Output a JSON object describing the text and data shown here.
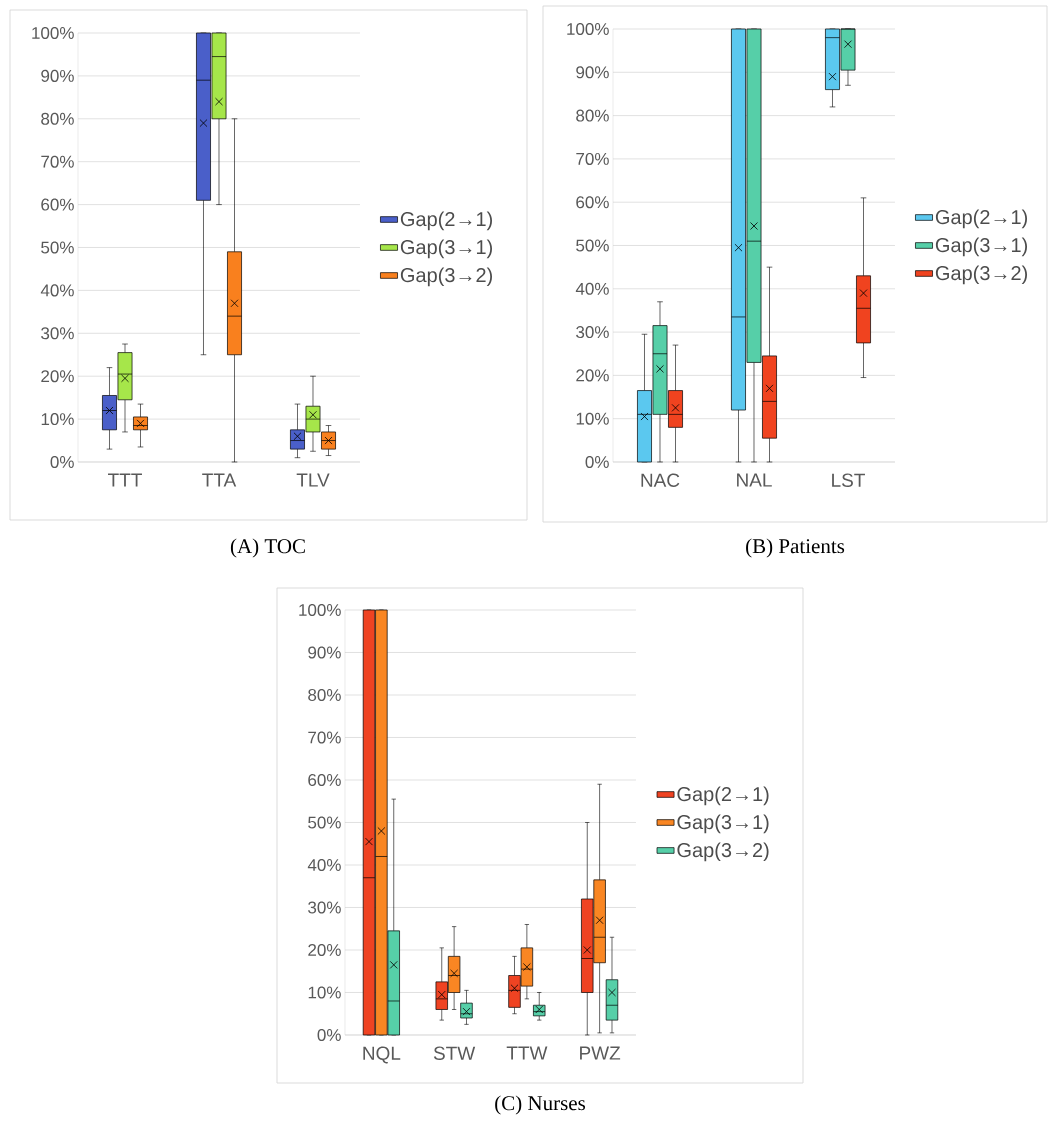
{
  "chart_data": [
    {
      "type": "box",
      "title": "(A) TOC",
      "categories": [
        "TTT",
        "TTA",
        "TLV"
      ],
      "ylim": [
        0,
        100
      ],
      "yticks": [
        {
          "value": 0,
          "label": "0%"
        },
        {
          "value": 10,
          "label": "10%"
        },
        {
          "value": 20,
          "label": "20%"
        },
        {
          "value": 30,
          "label": "30%"
        },
        {
          "value": 40,
          "label": "40%"
        },
        {
          "value": 50,
          "label": "50%"
        },
        {
          "value": 60,
          "label": "60%"
        },
        {
          "value": 70,
          "label": "70%"
        },
        {
          "value": 80,
          "label": "80%"
        },
        {
          "value": 90,
          "label": "90%"
        },
        {
          "value": 100,
          "label": "100%"
        }
      ],
      "grid": "y",
      "legend": "right",
      "series": [
        {
          "name": "Gap(2→1)",
          "color": "#4a5fc9",
          "boxes": [
            {
              "low": 3,
              "q1": 7.5,
              "median": 12,
              "q3": 15.5,
              "high": 22,
              "mean": 12
            },
            {
              "low": 25,
              "q1": 61,
              "median": 89,
              "q3": 100,
              "high": 100,
              "mean": 79
            },
            {
              "low": 1,
              "q1": 3,
              "median": 5,
              "q3": 7.5,
              "high": 13.5,
              "mean": 6
            }
          ]
        },
        {
          "name": "Gap(3→1)",
          "color": "#a6e64a",
          "boxes": [
            {
              "low": 7,
              "q1": 14.5,
              "median": 20.5,
              "q3": 25.5,
              "high": 27.5,
              "mean": 19.5
            },
            {
              "low": 60,
              "q1": 80,
              "median": 94.5,
              "q3": 100,
              "high": 100,
              "mean": 84
            },
            {
              "low": 2.5,
              "q1": 7,
              "median": 10,
              "q3": 13,
              "high": 20,
              "mean": 11
            }
          ]
        },
        {
          "name": "Gap(3→2)",
          "color": "#f9801e",
          "boxes": [
            {
              "low": 3.5,
              "q1": 7.5,
              "median": 8.5,
              "q3": 10.5,
              "high": 13.5,
              "mean": 9
            },
            {
              "low": 0,
              "q1": 25,
              "median": 34,
              "q3": 49,
              "high": 80,
              "mean": 37
            },
            {
              "low": 1.5,
              "q1": 3,
              "median": 5,
              "q3": 7,
              "high": 8.5,
              "mean": 5
            }
          ]
        }
      ]
    },
    {
      "type": "box",
      "title": "(B) Patients",
      "categories": [
        "NAC",
        "NAL",
        "LST"
      ],
      "ylim": [
        0,
        100
      ],
      "yticks": [
        {
          "value": 0,
          "label": "0%"
        },
        {
          "value": 10,
          "label": "10%"
        },
        {
          "value": 20,
          "label": "20%"
        },
        {
          "value": 30,
          "label": "30%"
        },
        {
          "value": 40,
          "label": "40%"
        },
        {
          "value": 50,
          "label": "50%"
        },
        {
          "value": 60,
          "label": "60%"
        },
        {
          "value": 70,
          "label": "70%"
        },
        {
          "value": 80,
          "label": "80%"
        },
        {
          "value": 90,
          "label": "90%"
        },
        {
          "value": 100,
          "label": "100%"
        }
      ],
      "grid": "y",
      "legend": "right",
      "series": [
        {
          "name": "Gap(2→1)",
          "color": "#5bc8ef",
          "boxes": [
            {
              "low": 0,
              "q1": 0,
              "median": 11,
              "q3": 16.5,
              "high": 29.5,
              "mean": 10.5
            },
            {
              "low": 0,
              "q1": 12,
              "median": 33.5,
              "q3": 100,
              "high": 100,
              "mean": 49.5
            },
            {
              "low": 82,
              "q1": 86,
              "median": 98,
              "q3": 100,
              "high": 100,
              "mean": 89
            }
          ]
        },
        {
          "name": "Gap(3→1)",
          "color": "#56cfa8",
          "boxes": [
            {
              "low": 0,
              "q1": 11,
              "median": 25,
              "q3": 31.5,
              "high": 37,
              "mean": 21.5
            },
            {
              "low": 0,
              "q1": 23,
              "median": 51,
              "q3": 100,
              "high": 100,
              "mean": 54.5
            },
            {
              "low": 87,
              "q1": 90.5,
              "median": 100,
              "q3": 100,
              "high": 100,
              "mean": 96.5
            }
          ]
        },
        {
          "name": "Gap(3→2)",
          "color": "#f0431f",
          "boxes": [
            {
              "low": 0,
              "q1": 8,
              "median": 11,
              "q3": 16.5,
              "high": 27,
              "mean": 12.5
            },
            {
              "low": 0,
              "q1": 5.5,
              "median": 14,
              "q3": 24.5,
              "high": 45,
              "mean": 17
            },
            {
              "low": 19.5,
              "q1": 27.5,
              "median": 35.5,
              "q3": 43,
              "high": 61,
              "mean": 39
            }
          ]
        }
      ]
    },
    {
      "type": "box",
      "title": "(C) Nurses",
      "categories": [
        "NQL",
        "STW",
        "TTW",
        "PWZ"
      ],
      "ylim": [
        0,
        100
      ],
      "yticks": [
        {
          "value": 0,
          "label": "0%"
        },
        {
          "value": 10,
          "label": "10%"
        },
        {
          "value": 20,
          "label": "20%"
        },
        {
          "value": 30,
          "label": "30%"
        },
        {
          "value": 40,
          "label": "40%"
        },
        {
          "value": 50,
          "label": "50%"
        },
        {
          "value": 60,
          "label": "60%"
        },
        {
          "value": 70,
          "label": "70%"
        },
        {
          "value": 80,
          "label": "80%"
        },
        {
          "value": 90,
          "label": "90%"
        },
        {
          "value": 100,
          "label": "100%"
        }
      ],
      "grid": "y",
      "legend": "right",
      "series": [
        {
          "name": "Gap(2→1)",
          "color": "#ef4322",
          "boxes": [
            {
              "low": 0,
              "q1": 0,
              "median": 37,
              "q3": 100,
              "high": 100,
              "mean": 45.5
            },
            {
              "low": 3.5,
              "q1": 6,
              "median": 8.5,
              "q3": 12.5,
              "high": 20.5,
              "mean": 9.5
            },
            {
              "low": 5,
              "q1": 6.5,
              "median": 10.5,
              "q3": 14,
              "high": 18.5,
              "mean": 11
            },
            {
              "low": 0,
              "q1": 10,
              "median": 18,
              "q3": 32,
              "high": 50,
              "mean": 20
            }
          ]
        },
        {
          "name": "Gap(3→1)",
          "color": "#f98623",
          "boxes": [
            {
              "low": 0,
              "q1": 0,
              "median": 42,
              "q3": 100,
              "high": 100,
              "mean": 48
            },
            {
              "low": 6,
              "q1": 10,
              "median": 14,
              "q3": 18.5,
              "high": 25.5,
              "mean": 14.5
            },
            {
              "low": 8.5,
              "q1": 11.5,
              "median": 15.5,
              "q3": 20.5,
              "high": 26,
              "mean": 16
            },
            {
              "low": 0.5,
              "q1": 17,
              "median": 23,
              "q3": 36.5,
              "high": 59,
              "mean": 27
            }
          ]
        },
        {
          "name": "Gap(3→2)",
          "color": "#56cfa8",
          "boxes": [
            {
              "low": 0,
              "q1": 0,
              "median": 8,
              "q3": 24.5,
              "high": 55.5,
              "mean": 16.5
            },
            {
              "low": 2.5,
              "q1": 4,
              "median": 5,
              "q3": 7.5,
              "high": 10.5,
              "mean": 5.5
            },
            {
              "low": 3.5,
              "q1": 4.5,
              "median": 5.5,
              "q3": 7,
              "high": 10,
              "mean": 6
            },
            {
              "low": 0.5,
              "q1": 3.5,
              "median": 7,
              "q3": 13,
              "high": 23,
              "mean": 10
            }
          ]
        }
      ]
    }
  ]
}
